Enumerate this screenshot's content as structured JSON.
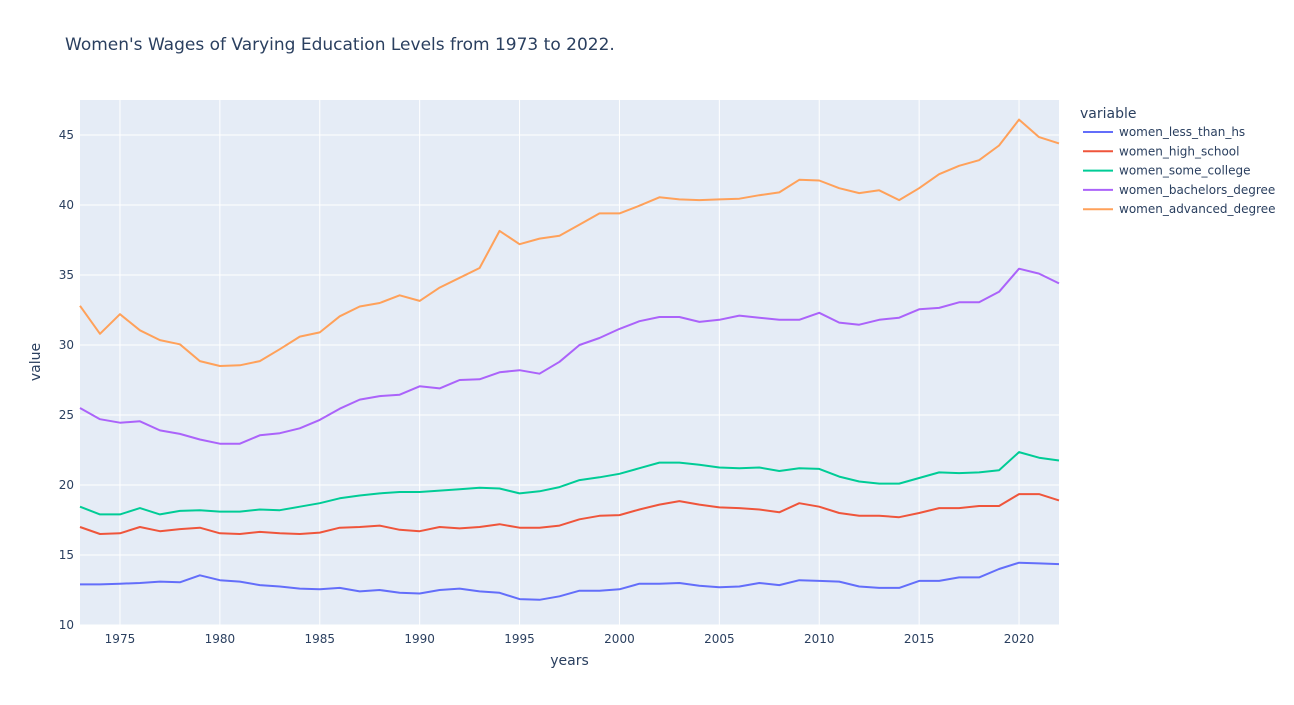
{
  "chart_data": {
    "type": "line",
    "title": "Women's Wages of Varying Education Levels from 1973 to 2022.",
    "xlabel": "years",
    "ylabel": "value",
    "legend_title": "variable",
    "legend_position": "right",
    "grid": true,
    "xlim": [
      1973,
      2022
    ],
    "ylim": [
      10,
      47.5
    ],
    "x_ticks": [
      1975,
      1980,
      1985,
      1990,
      1995,
      2000,
      2005,
      2010,
      2015,
      2020
    ],
    "y_ticks": [
      10,
      15,
      20,
      25,
      30,
      35,
      40,
      45
    ],
    "x": [
      1973,
      1974,
      1975,
      1976,
      1977,
      1978,
      1979,
      1980,
      1981,
      1982,
      1983,
      1984,
      1985,
      1986,
      1987,
      1988,
      1989,
      1990,
      1991,
      1992,
      1993,
      1994,
      1995,
      1996,
      1997,
      1998,
      1999,
      2000,
      2001,
      2002,
      2003,
      2004,
      2005,
      2006,
      2007,
      2008,
      2009,
      2010,
      2011,
      2012,
      2013,
      2014,
      2015,
      2016,
      2017,
      2018,
      2019,
      2020,
      2021,
      2022
    ],
    "series": [
      {
        "name": "women_less_than_hs",
        "color": "#636efa",
        "values": [
          12.9,
          12.9,
          12.95,
          13.0,
          13.1,
          13.05,
          13.55,
          13.2,
          13.1,
          12.85,
          12.75,
          12.6,
          12.55,
          12.65,
          12.4,
          12.5,
          12.3,
          12.25,
          12.5,
          12.6,
          12.4,
          12.3,
          11.85,
          11.8,
          12.05,
          12.45,
          12.45,
          12.55,
          12.95,
          12.95,
          13.0,
          12.8,
          12.7,
          12.75,
          13.0,
          12.85,
          13.2,
          13.15,
          13.1,
          12.75,
          12.65,
          12.65,
          13.15,
          13.15,
          13.4,
          13.4,
          14.0,
          14.45,
          14.4,
          14.35
        ]
      },
      {
        "name": "women_high_school",
        "color": "#ef553b",
        "values": [
          17.0,
          16.5,
          16.55,
          17.0,
          16.7,
          16.85,
          16.95,
          16.55,
          16.5,
          16.65,
          16.55,
          16.5,
          16.6,
          16.95,
          17.0,
          17.1,
          16.8,
          16.7,
          17.0,
          16.9,
          17.0,
          17.2,
          16.95,
          16.95,
          17.1,
          17.55,
          17.8,
          17.85,
          18.25,
          18.6,
          18.85,
          18.6,
          18.4,
          18.35,
          18.25,
          18.05,
          18.7,
          18.45,
          18.0,
          17.8,
          17.8,
          17.7,
          18.0,
          18.35,
          18.35,
          18.5,
          18.5,
          19.35,
          19.35,
          18.9
        ]
      },
      {
        "name": "women_some_college",
        "color": "#00cc96",
        "values": [
          18.45,
          17.9,
          17.9,
          18.35,
          17.9,
          18.15,
          18.2,
          18.1,
          18.1,
          18.25,
          18.2,
          18.45,
          18.7,
          19.05,
          19.25,
          19.4,
          19.5,
          19.5,
          19.6,
          19.7,
          19.8,
          19.75,
          19.4,
          19.55,
          19.85,
          20.35,
          20.55,
          20.8,
          21.2,
          21.6,
          21.6,
          21.45,
          21.25,
          21.2,
          21.25,
          21.0,
          21.2,
          21.15,
          20.6,
          20.25,
          20.1,
          20.1,
          20.5,
          20.9,
          20.85,
          20.9,
          21.05,
          22.35,
          21.95,
          21.75
        ]
      },
      {
        "name": "women_bachelors_degree",
        "color": "#ab63fa",
        "values": [
          25.5,
          24.7,
          24.45,
          24.55,
          23.9,
          23.65,
          23.25,
          22.95,
          22.95,
          23.55,
          23.7,
          24.05,
          24.65,
          25.45,
          26.1,
          26.35,
          26.45,
          27.05,
          26.9,
          27.5,
          27.55,
          28.05,
          28.2,
          27.95,
          28.8,
          30.0,
          30.5,
          31.15,
          31.7,
          32.0,
          32.0,
          31.65,
          31.8,
          32.1,
          31.95,
          31.8,
          31.8,
          32.3,
          31.6,
          31.45,
          31.8,
          31.95,
          32.55,
          32.65,
          33.05,
          33.05,
          33.8,
          35.45,
          35.1,
          34.4
        ]
      },
      {
        "name": "women_advanced_degree",
        "color": "#ffa15a",
        "values": [
          32.8,
          30.8,
          32.2,
          31.05,
          30.35,
          30.05,
          28.85,
          28.5,
          28.55,
          28.85,
          29.7,
          30.6,
          30.9,
          32.05,
          32.75,
          33.0,
          33.55,
          33.15,
          34.1,
          34.8,
          35.5,
          38.15,
          37.2,
          37.6,
          37.8,
          38.6,
          39.4,
          39.4,
          39.95,
          40.55,
          40.4,
          40.35,
          40.4,
          40.45,
          40.7,
          40.9,
          41.8,
          41.75,
          41.2,
          40.85,
          41.05,
          40.35,
          41.2,
          42.2,
          42.8,
          43.2,
          44.25,
          46.1,
          44.85,
          44.4
        ]
      }
    ]
  }
}
